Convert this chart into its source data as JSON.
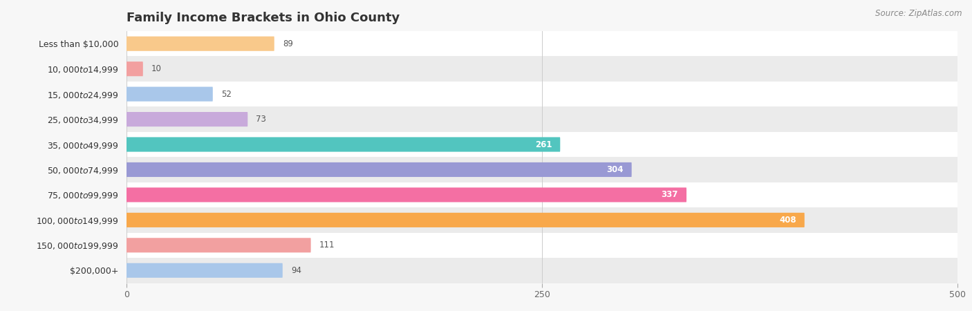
{
  "title": "Family Income Brackets in Ohio County",
  "source": "Source: ZipAtlas.com",
  "categories": [
    "Less than $10,000",
    "$10,000 to $14,999",
    "$15,000 to $24,999",
    "$25,000 to $34,999",
    "$35,000 to $49,999",
    "$50,000 to $74,999",
    "$75,000 to $99,999",
    "$100,000 to $149,999",
    "$150,000 to $199,999",
    "$200,000+"
  ],
  "values": [
    89,
    10,
    52,
    73,
    261,
    304,
    337,
    408,
    111,
    94
  ],
  "bar_colors": [
    "#F9C98B",
    "#F2A0A0",
    "#A9C7EA",
    "#C8AADB",
    "#52C5BF",
    "#9999D4",
    "#F46FA3",
    "#F8A84B",
    "#F2A0A0",
    "#A9C7EA"
  ],
  "xlim": [
    0,
    500
  ],
  "xticks": [
    0,
    250,
    500
  ],
  "bar_height": 0.58,
  "background_color": "#f7f7f7",
  "title_color": "#333333",
  "value_threshold": 200
}
